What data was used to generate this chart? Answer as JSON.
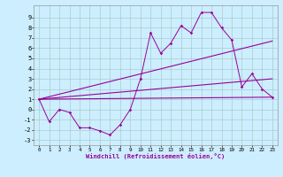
{
  "xlabel": "Windchill (Refroidissement éolien,°C)",
  "bg_color": "#cceeff",
  "grid_color": "#aacccc",
  "line_color": "#990099",
  "x_data": [
    0,
    1,
    2,
    3,
    4,
    5,
    6,
    7,
    8,
    9,
    10,
    11,
    12,
    13,
    14,
    15,
    16,
    17,
    18,
    19,
    20,
    21,
    22,
    23
  ],
  "scatter_y": [
    1,
    -1.2,
    0.0,
    -0.3,
    -1.8,
    -1.8,
    -2.1,
    -2.5,
    -1.5,
    0.0,
    3.0,
    7.5,
    5.5,
    6.5,
    8.2,
    7.5,
    9.5,
    9.5,
    8.0,
    6.8,
    2.2,
    3.5,
    2.0,
    1.2
  ],
  "line1_x": [
    0,
    23
  ],
  "line1_y": [
    1.0,
    1.2
  ],
  "line2_x": [
    0,
    23
  ],
  "line2_y": [
    1.0,
    6.7
  ],
  "line3_x": [
    0,
    23
  ],
  "line3_y": [
    1.0,
    3.0
  ],
  "xlim": [
    -0.5,
    23.5
  ],
  "ylim": [
    -3.5,
    10.2
  ],
  "yticks": [
    -3,
    -2,
    -1,
    0,
    1,
    2,
    3,
    4,
    5,
    6,
    7,
    8,
    9
  ],
  "xticks": [
    0,
    1,
    2,
    3,
    4,
    5,
    6,
    7,
    8,
    9,
    10,
    11,
    12,
    13,
    14,
    15,
    16,
    17,
    18,
    19,
    20,
    21,
    22,
    23
  ]
}
